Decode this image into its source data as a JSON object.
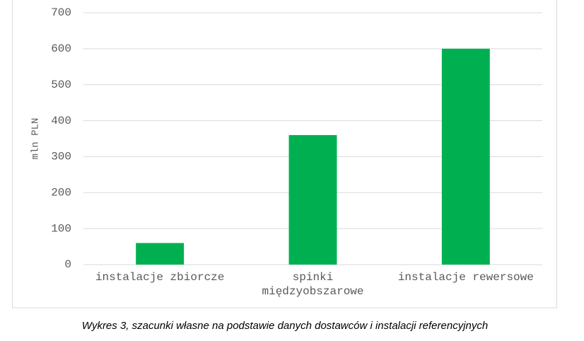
{
  "chart_data": {
    "type": "bar",
    "y_label": "mln PLN",
    "categories": [
      "instalacje zbiorcze",
      "spinki międzyobszarowe",
      "instalacje rewersowe"
    ],
    "values": [
      60,
      360,
      600
    ],
    "color": "#00b050",
    "ylim": [
      0,
      700
    ],
    "yticks": [
      0,
      100,
      200,
      300,
      400,
      500,
      600,
      700
    ],
    "grid": true,
    "caption": "Wykres 3, szacunki własne na podstawie danych dostawców i instalacji referencyjnych"
  }
}
